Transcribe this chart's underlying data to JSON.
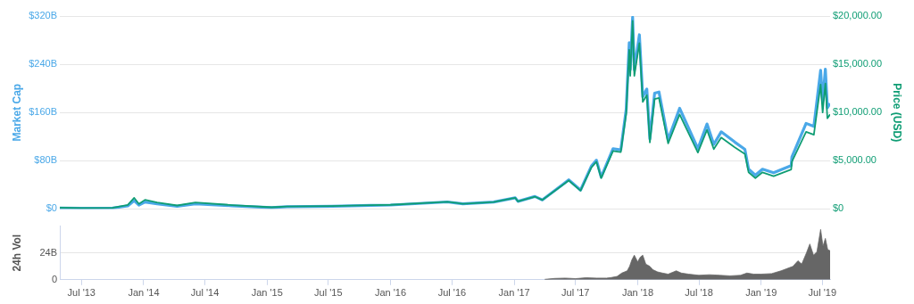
{
  "chart_data": [
    {
      "type": "line",
      "ylabel": "Market Cap",
      "y2label": "Price (USD)",
      "grid": "y",
      "tick_labels": "y",
      "legend": false,
      "x": [
        "2013-04-28",
        "2013-07-01",
        "2013-10-01",
        "2013-11-15",
        "2013-12-04",
        "2013-12-18",
        "2014-01-05",
        "2014-02-10",
        "2014-04-10",
        "2014-06-03",
        "2014-09-20",
        "2015-01-14",
        "2015-03-01",
        "2015-07-12",
        "2015-11-04",
        "2016-01-01",
        "2016-06-17",
        "2016-08-02",
        "2016-11-01",
        "2017-01-04",
        "2017-01-12",
        "2017-03-03",
        "2017-03-25",
        "2017-05-25",
        "2017-06-11",
        "2017-07-16",
        "2017-08-17",
        "2017-09-01",
        "2017-09-15",
        "2017-10-20",
        "2017-11-12",
        "2017-11-28",
        "2017-12-07",
        "2017-12-10",
        "2017-12-17",
        "2017-12-22",
        "2018-01-06",
        "2018-01-16",
        "2018-01-28",
        "2018-02-06",
        "2018-02-20",
        "2018-03-05",
        "2018-04-01",
        "2018-05-05",
        "2018-06-28",
        "2018-07-25",
        "2018-08-14",
        "2018-09-05",
        "2018-10-15",
        "2018-11-14",
        "2018-11-25",
        "2018-12-15",
        "2019-01-05",
        "2019-02-07",
        "2019-03-31",
        "2019-04-02",
        "2019-05-14",
        "2019-06-06",
        "2019-06-26",
        "2019-07-02",
        "2019-07-10",
        "2019-07-16",
        "2019-07-24"
      ],
      "xlim": [
        "2013-04-28",
        "2019-07-24"
      ],
      "ylim": [
        0,
        320
      ],
      "yticks": [
        {
          "value": 0,
          "label": "$0"
        },
        {
          "value": 80,
          "label": "$80B"
        },
        {
          "value": 160,
          "label": "$160B"
        },
        {
          "value": 240,
          "label": "$240B"
        },
        {
          "value": 320,
          "label": "$320B"
        }
      ],
      "y2lim": [
        0,
        20000
      ],
      "y2ticks": [
        {
          "value": 0,
          "label": "$0"
        },
        {
          "value": 5000,
          "label": "$5,000.00"
        },
        {
          "value": 10000,
          "label": "$10,000.00"
        },
        {
          "value": 15000,
          "label": "$15,000.00"
        },
        {
          "value": 20000,
          "label": "$20,000.00"
        }
      ],
      "series": [
        {
          "color": "#4aa8e8",
          "values": [
            1.5,
            1.0,
            1.5,
            5.0,
            13.8,
            6.3,
            11.6,
            8.4,
            4.5,
            8.6,
            5.3,
            2.4,
            3.6,
            4.4,
            6.0,
            6.5,
            11.7,
            8.5,
            11.5,
            18.5,
            12.6,
            20.7,
            15.1,
            40.9,
            48.4,
            31.3,
            71,
            81,
            53,
            100,
            98,
            165,
            276,
            231,
            318,
            231,
            289,
            186,
            199,
            116,
            192,
            194,
            115,
            167,
            100,
            141,
            107,
            128,
            111,
            99,
            66,
            56,
            66,
            60,
            72,
            86,
            142,
            137,
            230,
            178,
            232,
            168,
            175
          ]
        },
        {
          "axis": "y2",
          "color": "#0f9d74",
          "values": [
            135,
            90,
            125,
            420,
            1150,
            520,
            950,
            680,
            360,
            670,
            400,
            175,
            260,
            310,
            400,
            430,
            750,
            540,
            720,
            1150,
            780,
            1280,
            930,
            2500,
            2950,
            1900,
            4300,
            4900,
            3200,
            6000,
            5900,
            9900,
            16500,
            13800,
            19500,
            13800,
            17200,
            11100,
            11800,
            6900,
            11400,
            11500,
            6800,
            9800,
            5850,
            8200,
            6200,
            7400,
            6400,
            5700,
            3800,
            3200,
            3800,
            3400,
            4100,
            4900,
            8000,
            7700,
            12900,
            10000,
            13000,
            9400,
            9800
          ]
        }
      ]
    },
    {
      "type": "area",
      "ylabel": "24h Vol",
      "grid": "y",
      "legend": false,
      "x": [
        "2017-04-01",
        "2017-05-01",
        "2017-06-01",
        "2017-07-01",
        "2017-08-01",
        "2017-09-01",
        "2017-10-01",
        "2017-10-15",
        "2017-11-01",
        "2017-11-15",
        "2017-12-01",
        "2017-12-08",
        "2017-12-15",
        "2017-12-22",
        "2018-01-01",
        "2018-01-08",
        "2018-01-16",
        "2018-01-25",
        "2018-02-06",
        "2018-02-15",
        "2018-03-01",
        "2018-03-15",
        "2018-04-01",
        "2018-04-25",
        "2018-05-10",
        "2018-06-01",
        "2018-07-01",
        "2018-08-01",
        "2018-09-01",
        "2018-10-01",
        "2018-11-01",
        "2018-11-20",
        "2018-12-10",
        "2019-01-01",
        "2019-02-01",
        "2019-03-01",
        "2019-04-05",
        "2019-04-20",
        "2019-05-01",
        "2019-05-15",
        "2019-05-25",
        "2019-06-05",
        "2019-06-15",
        "2019-06-26",
        "2019-07-03",
        "2019-07-10",
        "2019-07-17",
        "2019-07-24"
      ],
      "xlim": [
        "2013-04-28",
        "2019-07-24"
      ],
      "xticks": [
        {
          "value": "2013-07-01",
          "label": "Jul '13"
        },
        {
          "value": "2014-01-01",
          "label": "Jan '14"
        },
        {
          "value": "2014-07-01",
          "label": "Jul '14"
        },
        {
          "value": "2015-01-01",
          "label": "Jan '15"
        },
        {
          "value": "2015-07-01",
          "label": "Jul '15"
        },
        {
          "value": "2016-01-01",
          "label": "Jan '16"
        },
        {
          "value": "2016-07-01",
          "label": "Jul '16"
        },
        {
          "value": "2017-01-01",
          "label": "Jan '17"
        },
        {
          "value": "2017-07-01",
          "label": "Jul '17"
        },
        {
          "value": "2018-01-01",
          "label": "Jan '18"
        },
        {
          "value": "2018-07-01",
          "label": "Jul '18"
        },
        {
          "value": "2019-01-01",
          "label": "Jan '19"
        },
        {
          "value": "2019-07-01",
          "label": "Jul '19"
        }
      ],
      "ylim": [
        0,
        48
      ],
      "yticks": [
        {
          "value": 0,
          "label": "0"
        },
        {
          "value": 24,
          "label": "24B"
        }
      ],
      "series": [
        {
          "color": "#666666",
          "values": [
            0.4,
            1.2,
            1.5,
            1.0,
            1.8,
            1.5,
            1.5,
            2.0,
            3,
            6,
            8,
            12,
            18,
            22,
            16,
            20,
            22,
            14,
            12,
            9,
            7,
            6,
            5,
            8,
            6,
            5,
            4,
            4.5,
            4,
            3.5,
            4,
            6,
            5,
            5,
            5.5,
            8,
            12,
            17,
            14,
            24,
            32,
            22,
            25,
            45,
            30,
            37,
            27,
            26
          ]
        }
      ]
    }
  ]
}
